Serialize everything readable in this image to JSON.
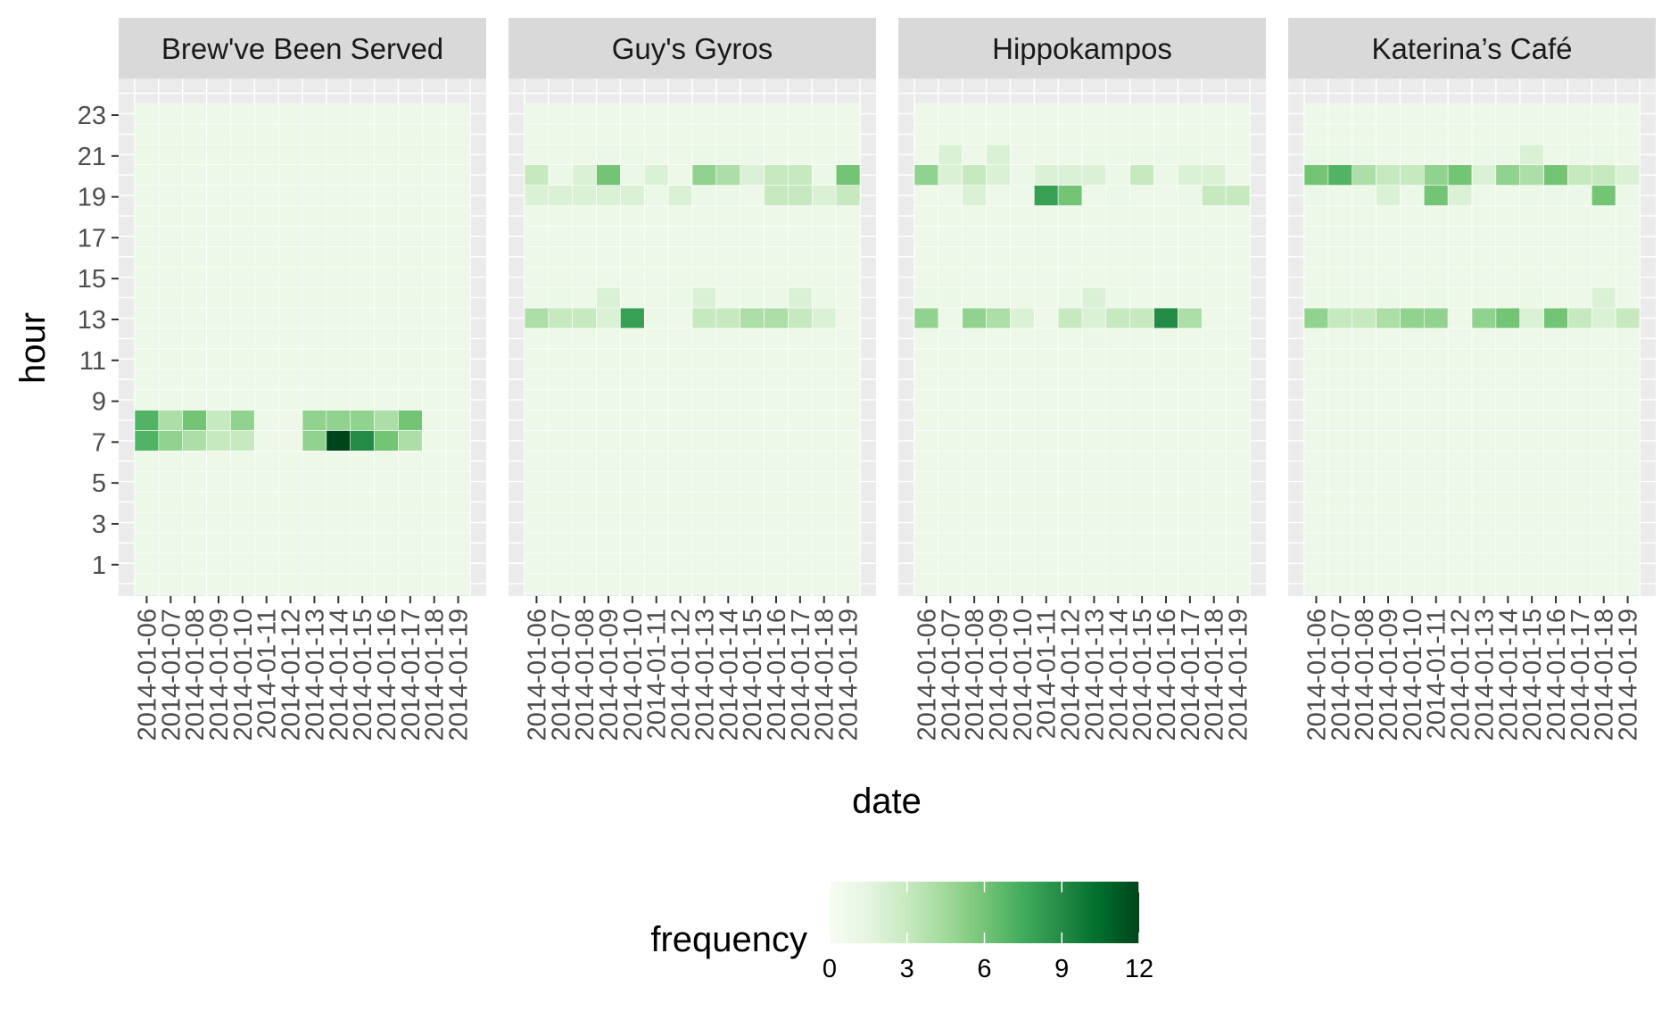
{
  "chart_data": {
    "type": "heatmap",
    "xlabel": "date",
    "ylabel": "hour",
    "panels": [
      {
        "name": "Brew've Been Served",
        "cells": [
          {
            "date": "2014-01-06",
            "hour": 7,
            "value": 7
          },
          {
            "date": "2014-01-07",
            "hour": 7,
            "value": 5
          },
          {
            "date": "2014-01-08",
            "hour": 7,
            "value": 4
          },
          {
            "date": "2014-01-09",
            "hour": 7,
            "value": 3
          },
          {
            "date": "2014-01-10",
            "hour": 7,
            "value": 3
          },
          {
            "date": "2014-01-13",
            "hour": 7,
            "value": 5
          },
          {
            "date": "2014-01-14",
            "hour": 7,
            "value": 12
          },
          {
            "date": "2014-01-15",
            "hour": 7,
            "value": 9
          },
          {
            "date": "2014-01-16",
            "hour": 7,
            "value": 6
          },
          {
            "date": "2014-01-17",
            "hour": 7,
            "value": 4
          },
          {
            "date": "2014-01-06",
            "hour": 8,
            "value": 7
          },
          {
            "date": "2014-01-07",
            "hour": 8,
            "value": 4
          },
          {
            "date": "2014-01-08",
            "hour": 8,
            "value": 6
          },
          {
            "date": "2014-01-09",
            "hour": 8,
            "value": 3
          },
          {
            "date": "2014-01-10",
            "hour": 8,
            "value": 5
          },
          {
            "date": "2014-01-13",
            "hour": 8,
            "value": 5
          },
          {
            "date": "2014-01-14",
            "hour": 8,
            "value": 5
          },
          {
            "date": "2014-01-15",
            "hour": 8,
            "value": 5
          },
          {
            "date": "2014-01-16",
            "hour": 8,
            "value": 4
          },
          {
            "date": "2014-01-17",
            "hour": 8,
            "value": 6
          }
        ]
      },
      {
        "name": "Guy's Gyros",
        "cells": [
          {
            "date": "2014-01-06",
            "hour": 13,
            "value": 4
          },
          {
            "date": "2014-01-07",
            "hour": 13,
            "value": 3
          },
          {
            "date": "2014-01-08",
            "hour": 13,
            "value": 3
          },
          {
            "date": "2014-01-09",
            "hour": 13,
            "value": 2
          },
          {
            "date": "2014-01-10",
            "hour": 13,
            "value": 8
          },
          {
            "date": "2014-01-11",
            "hour": 13,
            "value": 1
          },
          {
            "date": "2014-01-13",
            "hour": 13,
            "value": 3
          },
          {
            "date": "2014-01-14",
            "hour": 13,
            "value": 3
          },
          {
            "date": "2014-01-15",
            "hour": 13,
            "value": 4
          },
          {
            "date": "2014-01-16",
            "hour": 13,
            "value": 4
          },
          {
            "date": "2014-01-17",
            "hour": 13,
            "value": 3
          },
          {
            "date": "2014-01-18",
            "hour": 13,
            "value": 2
          },
          {
            "date": "2014-01-07",
            "hour": 14,
            "value": 1
          },
          {
            "date": "2014-01-09",
            "hour": 14,
            "value": 2
          },
          {
            "date": "2014-01-12",
            "hour": 14,
            "value": 1
          },
          {
            "date": "2014-01-13",
            "hour": 14,
            "value": 2
          },
          {
            "date": "2014-01-15",
            "hour": 14,
            "value": 1
          },
          {
            "date": "2014-01-16",
            "hour": 14,
            "value": 1
          },
          {
            "date": "2014-01-17",
            "hour": 14,
            "value": 2
          },
          {
            "date": "2014-01-18",
            "hour": 14,
            "value": 1
          },
          {
            "date": "2014-01-06",
            "hour": 19,
            "value": 2
          },
          {
            "date": "2014-01-07",
            "hour": 19,
            "value": 2
          },
          {
            "date": "2014-01-08",
            "hour": 19,
            "value": 2
          },
          {
            "date": "2014-01-09",
            "hour": 19,
            "value": 2
          },
          {
            "date": "2014-01-10",
            "hour": 19,
            "value": 2
          },
          {
            "date": "2014-01-11",
            "hour": 19,
            "value": 1
          },
          {
            "date": "2014-01-12",
            "hour": 19,
            "value": 2
          },
          {
            "date": "2014-01-13",
            "hour": 19,
            "value": 1
          },
          {
            "date": "2014-01-14",
            "hour": 19,
            "value": 1
          },
          {
            "date": "2014-01-16",
            "hour": 19,
            "value": 3
          },
          {
            "date": "2014-01-17",
            "hour": 19,
            "value": 3
          },
          {
            "date": "2014-01-18",
            "hour": 19,
            "value": 2
          },
          {
            "date": "2014-01-19",
            "hour": 19,
            "value": 3
          },
          {
            "date": "2014-01-06",
            "hour": 20,
            "value": 3
          },
          {
            "date": "2014-01-07",
            "hour": 20,
            "value": 1
          },
          {
            "date": "2014-01-08",
            "hour": 20,
            "value": 2
          },
          {
            "date": "2014-01-09",
            "hour": 20,
            "value": 6
          },
          {
            "date": "2014-01-10",
            "hour": 20,
            "value": 1
          },
          {
            "date": "2014-01-11",
            "hour": 20,
            "value": 2
          },
          {
            "date": "2014-01-13",
            "hour": 20,
            "value": 5
          },
          {
            "date": "2014-01-14",
            "hour": 20,
            "value": 4
          },
          {
            "date": "2014-01-15",
            "hour": 20,
            "value": 2
          },
          {
            "date": "2014-01-16",
            "hour": 20,
            "value": 3
          },
          {
            "date": "2014-01-17",
            "hour": 20,
            "value": 3
          },
          {
            "date": "2014-01-18",
            "hour": 20,
            "value": 1
          },
          {
            "date": "2014-01-19",
            "hour": 20,
            "value": 6
          },
          {
            "date": "2014-01-09",
            "hour": 21,
            "value": 1
          },
          {
            "date": "2014-01-10",
            "hour": 21,
            "value": 1
          },
          {
            "date": "2014-01-13",
            "hour": 21,
            "value": 1
          },
          {
            "date": "2014-01-14",
            "hour": 21,
            "value": 1
          },
          {
            "date": "2014-01-15",
            "hour": 21,
            "value": 1
          }
        ]
      },
      {
        "name": "Hippokampos",
        "cells": [
          {
            "date": "2014-01-13",
            "hour": 12,
            "value": 1
          },
          {
            "date": "2014-01-06",
            "hour": 13,
            "value": 5
          },
          {
            "date": "2014-01-08",
            "hour": 13,
            "value": 5
          },
          {
            "date": "2014-01-09",
            "hour": 13,
            "value": 4
          },
          {
            "date": "2014-01-10",
            "hour": 13,
            "value": 2
          },
          {
            "date": "2014-01-12",
            "hour": 13,
            "value": 3
          },
          {
            "date": "2014-01-13",
            "hour": 13,
            "value": 2
          },
          {
            "date": "2014-01-14",
            "hour": 13,
            "value": 3
          },
          {
            "date": "2014-01-15",
            "hour": 13,
            "value": 3
          },
          {
            "date": "2014-01-16",
            "hour": 13,
            "value": 9
          },
          {
            "date": "2014-01-17",
            "hour": 13,
            "value": 4
          },
          {
            "date": "2014-01-06",
            "hour": 14,
            "value": 1
          },
          {
            "date": "2014-01-07",
            "hour": 14,
            "value": 1
          },
          {
            "date": "2014-01-12",
            "hour": 14,
            "value": 1
          },
          {
            "date": "2014-01-13",
            "hour": 14,
            "value": 2
          },
          {
            "date": "2014-01-14",
            "hour": 14,
            "value": 1
          },
          {
            "date": "2014-01-08",
            "hour": 19,
            "value": 2
          },
          {
            "date": "2014-01-11",
            "hour": 19,
            "value": 8
          },
          {
            "date": "2014-01-12",
            "hour": 19,
            "value": 6
          },
          {
            "date": "2014-01-14",
            "hour": 19,
            "value": 1
          },
          {
            "date": "2014-01-17",
            "hour": 19,
            "value": 1
          },
          {
            "date": "2014-01-18",
            "hour": 19,
            "value": 3
          },
          {
            "date": "2014-01-19",
            "hour": 19,
            "value": 3
          },
          {
            "date": "2014-01-06",
            "hour": 20,
            "value": 5
          },
          {
            "date": "2014-01-07",
            "hour": 20,
            "value": 2
          },
          {
            "date": "2014-01-08",
            "hour": 20,
            "value": 3
          },
          {
            "date": "2014-01-09",
            "hour": 20,
            "value": 2
          },
          {
            "date": "2014-01-10",
            "hour": 20,
            "value": 1
          },
          {
            "date": "2014-01-11",
            "hour": 20,
            "value": 2
          },
          {
            "date": "2014-01-12",
            "hour": 20,
            "value": 2
          },
          {
            "date": "2014-01-13",
            "hour": 20,
            "value": 2
          },
          {
            "date": "2014-01-14",
            "hour": 20,
            "value": 1
          },
          {
            "date": "2014-01-15",
            "hour": 20,
            "value": 3
          },
          {
            "date": "2014-01-16",
            "hour": 20,
            "value": 1
          },
          {
            "date": "2014-01-17",
            "hour": 20,
            "value": 2
          },
          {
            "date": "2014-01-18",
            "hour": 20,
            "value": 2
          },
          {
            "date": "2014-01-07",
            "hour": 21,
            "value": 2
          },
          {
            "date": "2014-01-09",
            "hour": 21,
            "value": 2
          },
          {
            "date": "2014-01-13",
            "hour": 21,
            "value": 1
          },
          {
            "date": "2014-01-14",
            "hour": 21,
            "value": 1
          },
          {
            "date": "2014-01-15",
            "hour": 21,
            "value": 1
          },
          {
            "date": "2014-01-16",
            "hour": 21,
            "value": 1
          },
          {
            "date": "2014-01-17",
            "hour": 21,
            "value": 1
          }
        ]
      },
      {
        "name": "Katerina’s Café",
        "cells": [
          {
            "date": "2014-01-06",
            "hour": 13,
            "value": 5
          },
          {
            "date": "2014-01-07",
            "hour": 13,
            "value": 3
          },
          {
            "date": "2014-01-08",
            "hour": 13,
            "value": 3
          },
          {
            "date": "2014-01-09",
            "hour": 13,
            "value": 4
          },
          {
            "date": "2014-01-10",
            "hour": 13,
            "value": 5
          },
          {
            "date": "2014-01-11",
            "hour": 13,
            "value": 5
          },
          {
            "date": "2014-01-13",
            "hour": 13,
            "value": 5
          },
          {
            "date": "2014-01-14",
            "hour": 13,
            "value": 6
          },
          {
            "date": "2014-01-15",
            "hour": 13,
            "value": 2
          },
          {
            "date": "2014-01-16",
            "hour": 13,
            "value": 6
          },
          {
            "date": "2014-01-17",
            "hour": 13,
            "value": 3
          },
          {
            "date": "2014-01-18",
            "hour": 13,
            "value": 2
          },
          {
            "date": "2014-01-19",
            "hour": 13,
            "value": 3
          },
          {
            "date": "2014-01-06",
            "hour": 14,
            "value": 1
          },
          {
            "date": "2014-01-07",
            "hour": 14,
            "value": 1
          },
          {
            "date": "2014-01-09",
            "hour": 14,
            "value": 1
          },
          {
            "date": "2014-01-11",
            "hour": 14,
            "value": 1
          },
          {
            "date": "2014-01-15",
            "hour": 14,
            "value": 1
          },
          {
            "date": "2014-01-18",
            "hour": 14,
            "value": 2
          },
          {
            "date": "2014-01-06",
            "hour": 19,
            "value": 1
          },
          {
            "date": "2014-01-08",
            "hour": 19,
            "value": 1
          },
          {
            "date": "2014-01-09",
            "hour": 19,
            "value": 2
          },
          {
            "date": "2014-01-10",
            "hour": 19,
            "value": 1
          },
          {
            "date": "2014-01-11",
            "hour": 19,
            "value": 6
          },
          {
            "date": "2014-01-12",
            "hour": 19,
            "value": 2
          },
          {
            "date": "2014-01-15",
            "hour": 19,
            "value": 1
          },
          {
            "date": "2014-01-16",
            "hour": 19,
            "value": 1
          },
          {
            "date": "2014-01-17",
            "hour": 19,
            "value": 1
          },
          {
            "date": "2014-01-18",
            "hour": 19,
            "value": 6
          },
          {
            "date": "2014-01-19",
            "hour": 19,
            "value": 1
          },
          {
            "date": "2014-01-06",
            "hour": 20,
            "value": 6
          },
          {
            "date": "2014-01-07",
            "hour": 20,
            "value": 7
          },
          {
            "date": "2014-01-08",
            "hour": 20,
            "value": 4
          },
          {
            "date": "2014-01-09",
            "hour": 20,
            "value": 3
          },
          {
            "date": "2014-01-10",
            "hour": 20,
            "value": 3
          },
          {
            "date": "2014-01-11",
            "hour": 20,
            "value": 5
          },
          {
            "date": "2014-01-12",
            "hour": 20,
            "value": 6
          },
          {
            "date": "2014-01-13",
            "hour": 20,
            "value": 2
          },
          {
            "date": "2014-01-14",
            "hour": 20,
            "value": 5
          },
          {
            "date": "2014-01-15",
            "hour": 20,
            "value": 4
          },
          {
            "date": "2014-01-16",
            "hour": 20,
            "value": 6
          },
          {
            "date": "2014-01-17",
            "hour": 20,
            "value": 3
          },
          {
            "date": "2014-01-18",
            "hour": 20,
            "value": 3
          },
          {
            "date": "2014-01-19",
            "hour": 20,
            "value": 2
          },
          {
            "date": "2014-01-06",
            "hour": 21,
            "value": 1
          },
          {
            "date": "2014-01-07",
            "hour": 21,
            "value": 1
          },
          {
            "date": "2014-01-08",
            "hour": 21,
            "value": 1
          },
          {
            "date": "2014-01-13",
            "hour": 21,
            "value": 1
          },
          {
            "date": "2014-01-14",
            "hour": 21,
            "value": 1
          },
          {
            "date": "2014-01-15",
            "hour": 21,
            "value": 2
          },
          {
            "date": "2014-01-17",
            "hour": 21,
            "value": 1
          },
          {
            "date": "2014-01-18",
            "hour": 21,
            "value": 1
          }
        ]
      }
    ],
    "dates": [
      "2014-01-06",
      "2014-01-07",
      "2014-01-08",
      "2014-01-09",
      "2014-01-10",
      "2014-01-11",
      "2014-01-12",
      "2014-01-13",
      "2014-01-14",
      "2014-01-15",
      "2014-01-16",
      "2014-01-17",
      "2014-01-18",
      "2014-01-19"
    ],
    "x_tick_labels": [
      "2014-01-06",
      "2014-01-07",
      "2014-01-08",
      "2014-01-09",
      "2014-01-10",
      "2014-01-11",
      "2014-01-12",
      "2014-01-13",
      "2014-01-14",
      "2014-01-15",
      "2014-01-16",
      "2014-01-17",
      "2014-01-18",
      "2014-01-19"
    ],
    "y_ticks": [
      1,
      3,
      5,
      7,
      9,
      11,
      13,
      15,
      17,
      19,
      21,
      23
    ],
    "ylim": [
      0,
      24
    ],
    "legend": {
      "title": "frequency",
      "position": "bottom",
      "range": [
        0,
        12
      ],
      "breaks": [
        0,
        3,
        6,
        9,
        12
      ],
      "colors": [
        "#f7fcf5",
        "#e5f5e0",
        "#c7e9c0",
        "#a1d99b",
        "#74c476",
        "#41ab5d",
        "#238b45",
        "#006d2c",
        "#00441b"
      ]
    },
    "colors": {
      "empty_tile": "#edf8e9",
      "panel_background": "#ebebeb",
      "strip_background": "#d9d9d9",
      "grid": "#ffffff"
    }
  }
}
